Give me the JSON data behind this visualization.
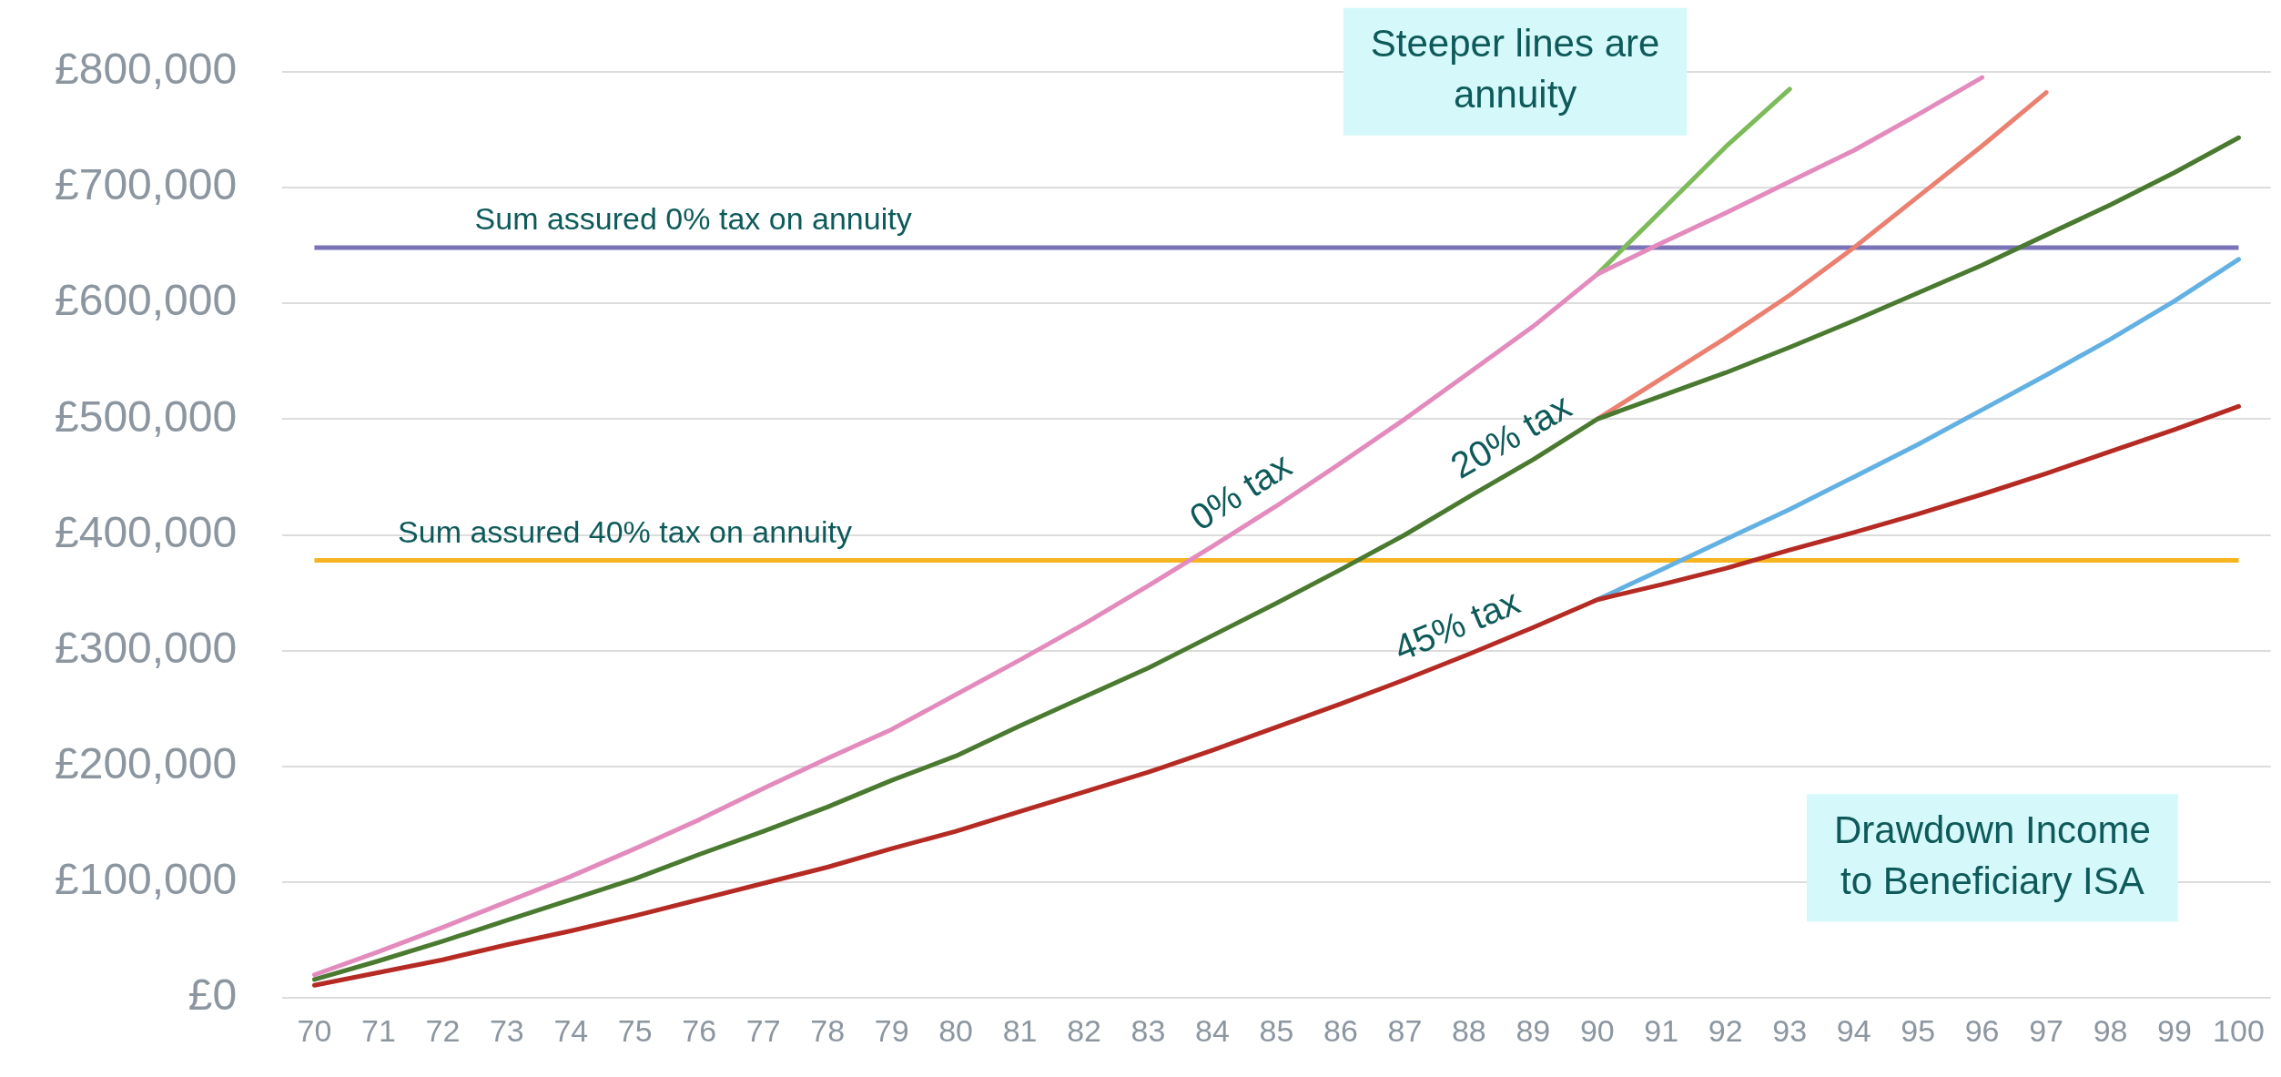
{
  "chart_data": {
    "type": "line",
    "categories": [
      "70",
      "71",
      "72",
      "73",
      "74",
      "75",
      "76",
      "77",
      "78",
      "79",
      "80",
      "81",
      "82",
      "83",
      "84",
      "85",
      "86",
      "87",
      "88",
      "89",
      "90",
      "91",
      "92",
      "93",
      "94",
      "95",
      "96",
      "97",
      "98",
      "99",
      "100"
    ],
    "series": [
      {
        "name": "0% tax",
        "color": "#e38bbd",
        "values": [
          20000,
          40000,
          61000,
          83000,
          105000,
          129000,
          154000,
          181000,
          207000,
          232000,
          262000,
          292000,
          323000,
          356000,
          390000,
          425000,
          462000,
          500000,
          540000,
          580000,
          625000,
          652000,
          678000,
          705000,
          732000,
          763000,
          795000,
          null,
          null,
          null,
          null
        ]
      },
      {
        "color": "#7dbb5a",
        "values": [
          null,
          null,
          null,
          null,
          null,
          null,
          null,
          null,
          null,
          null,
          null,
          null,
          null,
          null,
          null,
          null,
          null,
          null,
          null,
          null,
          625000,
          680000,
          735000,
          785000,
          null,
          null,
          null,
          null,
          null,
          null,
          null
        ]
      },
      {
        "name": "20% tax",
        "color": "#4a7a30",
        "values": [
          16000,
          32000,
          49000,
          67000,
          85000,
          103000,
          124000,
          144000,
          165000,
          188000,
          209000,
          235000,
          260000,
          285000,
          313000,
          341000,
          370000,
          400000,
          433000,
          465000,
          500000,
          520000,
          540000,
          562000,
          585000,
          609000,
          633000,
          659000,
          685000,
          713000,
          743000
        ]
      },
      {
        "color": "#eb8070",
        "values": [
          null,
          null,
          null,
          null,
          null,
          null,
          null,
          null,
          null,
          null,
          null,
          null,
          null,
          null,
          null,
          null,
          null,
          null,
          null,
          null,
          500000,
          535000,
          570000,
          607000,
          648000,
          692000,
          736000,
          782000,
          null,
          null,
          null
        ]
      },
      {
        "name": "45% tax",
        "color": "#b52b24",
        "values": [
          11000,
          22000,
          33000,
          46000,
          58000,
          71000,
          85000,
          99000,
          113000,
          129000,
          144000,
          161000,
          178000,
          195000,
          214000,
          234000,
          254000,
          275000,
          297000,
          320000,
          344000,
          357000,
          371000,
          387000,
          402000,
          418000,
          435000,
          453000,
          472000,
          491000,
          511000
        ]
      },
      {
        "color": "#63b1e3",
        "values": [
          null,
          null,
          null,
          null,
          null,
          null,
          null,
          null,
          null,
          null,
          null,
          null,
          null,
          null,
          null,
          null,
          null,
          null,
          null,
          null,
          344000,
          370000,
          396000,
          422000,
          450000,
          478000,
          508000,
          538000,
          569000,
          602000,
          638000
        ]
      }
    ],
    "ylim": [
      0,
      800000
    ],
    "yticks": [
      {
        "value": 0,
        "label": "£0"
      },
      {
        "value": 100000,
        "label": "£100,000"
      },
      {
        "value": 200000,
        "label": "£200,000"
      },
      {
        "value": 300000,
        "label": "£300,000"
      },
      {
        "value": 400000,
        "label": "£400,000"
      },
      {
        "value": 500000,
        "label": "£500,000"
      },
      {
        "value": 600000,
        "label": "£600,000"
      },
      {
        "value": 700000,
        "label": "£700,000"
      },
      {
        "value": 800000,
        "label": "£800,000"
      }
    ],
    "ref_lines": [
      {
        "axis": "y",
        "value": 648000,
        "label": "Sum assured 0% tax on annuity",
        "color": "#7b73b8"
      },
      {
        "axis": "y",
        "value": 378000,
        "label": "Sum assured 40% tax on annuity",
        "color": "#f6b41e"
      }
    ],
    "annotations": [
      "Steeper lines are annuity",
      "Drawdown Income to Beneficiary ISA"
    ],
    "grid": "y",
    "legend": false
  }
}
